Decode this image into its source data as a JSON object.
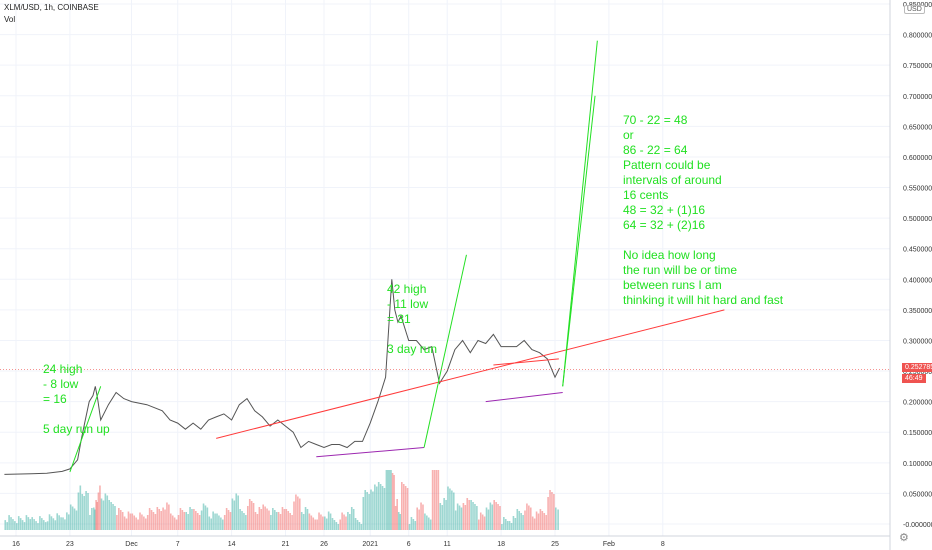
{
  "header": {
    "symbol": "XLM/USD, 1h, COINBASE",
    "volume_label": "Vol",
    "currency": "USD"
  },
  "price_tags": {
    "last_price": "0.252785",
    "countdown": "46:49"
  },
  "colors": {
    "up": "#26a69a",
    "down": "#ef5350",
    "annotation": "#22e022",
    "trend_red": "#ff3b3b",
    "trend_purple": "#9c27b0"
  },
  "annotations": [
    {
      "text": "24 high\n- 8 low\n= 16\n\n5 day run up"
    },
    {
      "text": "42 high\n- 11 low\n= 31\n\n3 day run"
    },
    {
      "text": "70 - 22 = 48\nor\n86 - 22 = 64\nPattern could be\nintervals of around\n16 cents\n48 = 32 + (1)16\n64 = 32 + (2)16\n\nNo idea how long\nthe run will be or time\nbetween runs I am\nthinking it will hit hard and fast"
    }
  ],
  "chart_data": {
    "type": "line",
    "title": "XLM/USD, 1h, COINBASE",
    "y_axis_ticks": [
      0.85,
      0.8,
      0.75,
      0.7,
      0.65,
      0.6,
      0.55,
      0.5,
      0.45,
      0.4,
      0.35,
      0.3,
      0.25,
      0.2,
      0.15,
      0.1,
      0.05,
      0.0
    ],
    "y_tick_labels": [
      "0.850000",
      "0.800000",
      "0.750000",
      "0.700000",
      "0.650000",
      "0.600000",
      "0.550000",
      "0.500000",
      "0.450000",
      "0.400000",
      "0.350000",
      "0.300000",
      "0.250000",
      "0.200000",
      "0.150000",
      "0.100000",
      "0.050000",
      "-0.000000"
    ],
    "x_tick_labels": [
      {
        "label": "16",
        "day": 0
      },
      {
        "label": "23",
        "day": 7
      },
      {
        "label": "Dec",
        "day": 15
      },
      {
        "label": "7",
        "day": 21
      },
      {
        "label": "14",
        "day": 28
      },
      {
        "label": "21",
        "day": 35
      },
      {
        "label": "26",
        "day": 40
      },
      {
        "label": "2021",
        "day": 46
      },
      {
        "label": "6",
        "day": 51
      },
      {
        "label": "11",
        "day": 56
      },
      {
        "label": "18",
        "day": 63
      },
      {
        "label": "25",
        "day": 70
      },
      {
        "label": "Feb",
        "day": 77
      },
      {
        "label": "8",
        "day": 84
      }
    ],
    "ylim": [
      0.0,
      0.85
    ],
    "series": [
      {
        "values": [
          [
            -1.5,
            0.081
          ],
          [
            2,
            0.082
          ],
          [
            4,
            0.083
          ],
          [
            6,
            0.086
          ],
          [
            7,
            0.09
          ],
          [
            8,
            0.105
          ],
          [
            8.5,
            0.14
          ],
          [
            9,
            0.17
          ],
          [
            9.5,
            0.2
          ],
          [
            10,
            0.21
          ],
          [
            10.3,
            0.225
          ],
          [
            10.6,
            0.205
          ],
          [
            11,
            0.17
          ],
          [
            12,
            0.195
          ],
          [
            13,
            0.215
          ],
          [
            14,
            0.205
          ],
          [
            15,
            0.2
          ],
          [
            17,
            0.195
          ],
          [
            19,
            0.185
          ],
          [
            20,
            0.17
          ],
          [
            21,
            0.165
          ],
          [
            22,
            0.155
          ],
          [
            23,
            0.165
          ],
          [
            24,
            0.155
          ],
          [
            25,
            0.17
          ],
          [
            26,
            0.175
          ],
          [
            27,
            0.18
          ],
          [
            28,
            0.17
          ],
          [
            29,
            0.195
          ],
          [
            30,
            0.205
          ],
          [
            31,
            0.185
          ],
          [
            32,
            0.175
          ],
          [
            33,
            0.16
          ],
          [
            34,
            0.17
          ],
          [
            35,
            0.16
          ],
          [
            36,
            0.15
          ],
          [
            37,
            0.125
          ],
          [
            38,
            0.135
          ],
          [
            39,
            0.13
          ],
          [
            40,
            0.125
          ],
          [
            41,
            0.13
          ],
          [
            42,
            0.13
          ],
          [
            43,
            0.125
          ],
          [
            44,
            0.135
          ],
          [
            45,
            0.135
          ],
          [
            46,
            0.165
          ],
          [
            47,
            0.2
          ],
          [
            48,
            0.24
          ],
          [
            48.4,
            0.32
          ],
          [
            48.8,
            0.4
          ],
          [
            49.2,
            0.35
          ],
          [
            49.6,
            0.33
          ],
          [
            50,
            0.34
          ],
          [
            51,
            0.3
          ],
          [
            52,
            0.3
          ],
          [
            53,
            0.285
          ],
          [
            54,
            0.29
          ],
          [
            55,
            0.23
          ],
          [
            56,
            0.25
          ],
          [
            57,
            0.285
          ],
          [
            58,
            0.3
          ],
          [
            59,
            0.28
          ],
          [
            60,
            0.3
          ],
          [
            61,
            0.295
          ],
          [
            62,
            0.31
          ],
          [
            63,
            0.29
          ],
          [
            64,
            0.29
          ],
          [
            65,
            0.29
          ],
          [
            66,
            0.3
          ],
          [
            67,
            0.285
          ],
          [
            68,
            0.28
          ],
          [
            69,
            0.27
          ],
          [
            70,
            0.24
          ],
          [
            70.6,
            0.255
          ]
        ]
      }
    ],
    "current_price": 0.252785,
    "trend_lines": [
      {
        "from": [
          26,
          0.14
        ],
        "to": [
          92,
          0.35
        ],
        "color": "red"
      },
      {
        "from": [
          62,
          0.26
        ],
        "to": [
          70.5,
          0.27
        ],
        "color": "red"
      },
      {
        "from": [
          39,
          0.11
        ],
        "to": [
          53,
          0.125
        ],
        "color": "purple"
      },
      {
        "from": [
          61,
          0.2
        ],
        "to": [
          71,
          0.215
        ],
        "color": "purple"
      },
      {
        "from": [
          7,
          0.085
        ],
        "to": [
          11,
          0.225
        ],
        "color": "green"
      },
      {
        "from": [
          53,
          0.125
        ],
        "to": [
          58.5,
          0.44
        ],
        "color": "green"
      },
      {
        "from": [
          71,
          0.225
        ],
        "to": [
          75.5,
          0.79
        ],
        "color": "green"
      },
      {
        "from": [
          71,
          0.225
        ],
        "to": [
          75.2,
          0.7
        ],
        "color": "green"
      }
    ]
  }
}
